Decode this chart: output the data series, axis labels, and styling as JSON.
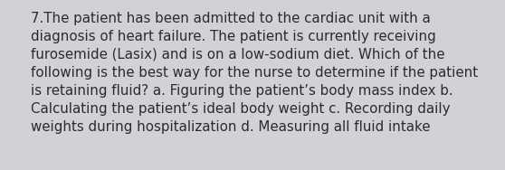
{
  "lines": [
    "7.The patient has been admitted to the cardiac unit with a",
    "diagnosis of heart failure. The patient is currently receiving",
    "furosemide (Lasix) and is on a low-sodium diet. Which of the",
    "following is the best way for the nurse to determine if the patient",
    "is retaining fluid? a. Figuring the patient’s body mass index b.",
    "Calculating the patient’s ideal body weight c. Recording daily",
    "weights during hospitalization d. Measuring all fluid intake"
  ],
  "background_color": "#d0d2d6",
  "text_color": "#2b2b2b",
  "font_size": 10.8,
  "fig_width": 5.58,
  "fig_height": 1.88,
  "dpi": 100
}
